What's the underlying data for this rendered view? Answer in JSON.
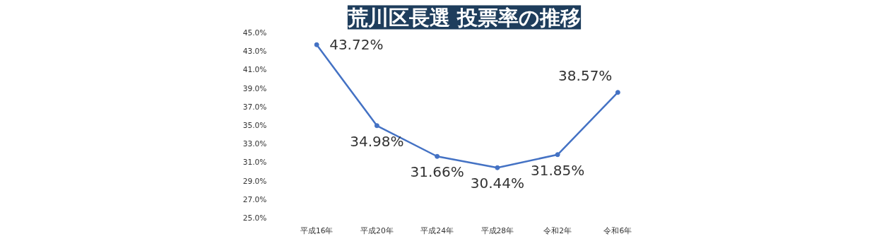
{
  "chart_data": {
    "type": "line",
    "title": "荒川区長選 投票率の推移",
    "categories": [
      "平成16年",
      "平成20年",
      "平成24年",
      "平成28年",
      "令和2年",
      "令和6年"
    ],
    "series": [
      {
        "color": "#4472c4",
        "values": [
          43.72,
          34.98,
          31.66,
          30.44,
          31.85,
          38.57
        ],
        "value_labels": [
          "43.72%",
          "34.98%",
          "31.66%",
          "30.44%",
          "31.85%",
          "38.57%"
        ]
      }
    ],
    "ylim": [
      25,
      45
    ],
    "yticks": [
      {
        "value": 25,
        "label": "25.0%"
      },
      {
        "value": 27,
        "label": "27.0%"
      },
      {
        "value": 29,
        "label": "29.0%"
      },
      {
        "value": 31,
        "label": "31.0%"
      },
      {
        "value": 33,
        "label": "33.0%"
      },
      {
        "value": 35,
        "label": "35.0%"
      },
      {
        "value": 37,
        "label": "37.0%"
      },
      {
        "value": 39,
        "label": "39.0%"
      },
      {
        "value": 41,
        "label": "41.0%"
      },
      {
        "value": 43,
        "label": "43.0%"
      },
      {
        "value": 45,
        "label": "45.0%"
      }
    ],
    "grid": false,
    "marker": "circle",
    "line_style": "solid"
  }
}
